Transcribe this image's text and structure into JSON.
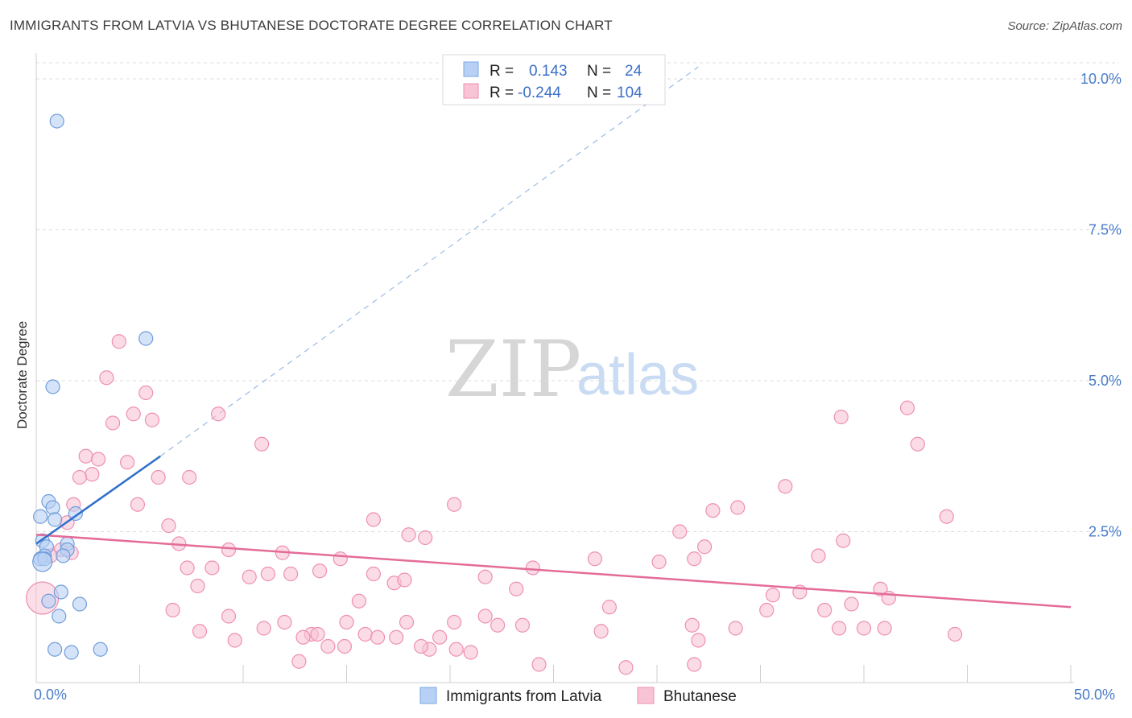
{
  "header": {
    "title": "IMMIGRANTS FROM LATVIA VS BHUTANESE DOCTORATE DEGREE CORRELATION CHART",
    "source": "Source: ZipAtlas.com"
  },
  "watermark": {
    "zip": "ZIP",
    "atlas": "atlas"
  },
  "legend": {
    "r_label": "R =",
    "n_label": "N =",
    "rows": [
      {
        "r": "0.143",
        "n": "24",
        "color": "#7aa8e6"
      },
      {
        "r": "-0.244",
        "n": "104",
        "color": "#f08bb0"
      }
    ]
  },
  "colors": {
    "latvia_fill": "#b7d0f3",
    "latvia_stroke": "#6f9ddc",
    "latvia_line": "#2f6fca",
    "bhutanese_fill": "#f8c3d4",
    "bhutanese_stroke": "#ee8fb1",
    "bhutanese_line": "#e46c98",
    "axis_text": "#4a7cc9",
    "grid": "#dcdcdc"
  },
  "chart_data": {
    "type": "scatter",
    "title": "IMMIGRANTS FROM LATVIA VS BHUTANESE DOCTORATE DEGREE CORRELATION CHART",
    "xlabel": "",
    "ylabel": "Doctorate Degree",
    "xlim": [
      0,
      50
    ],
    "ylim": [
      0,
      10
    ],
    "x_tick_labels": [
      "0.0%",
      "50.0%"
    ],
    "y_ticks": [
      2.5,
      5.0,
      7.5,
      10.0
    ],
    "y_tick_labels": [
      "2.5%",
      "5.0%",
      "7.5%",
      "10.0%"
    ],
    "grid": true,
    "legend_position": "top-center",
    "series": [
      {
        "name": "Immigrants from Latvia",
        "r": 0.143,
        "n": 24,
        "trend": {
          "x": [
            0,
            6
          ],
          "y": [
            2.3,
            3.75
          ],
          "dashed_extension_to": [
            32,
            10.2
          ]
        },
        "points": [
          [
            1.0,
            9.3
          ],
          [
            5.3,
            5.7
          ],
          [
            0.8,
            4.9
          ],
          [
            0.6,
            3.0
          ],
          [
            0.8,
            2.9
          ],
          [
            0.2,
            2.75
          ],
          [
            0.9,
            2.7
          ],
          [
            1.9,
            2.8
          ],
          [
            0.3,
            2.35
          ],
          [
            1.5,
            2.3
          ],
          [
            0.5,
            2.25
          ],
          [
            1.5,
            2.2
          ],
          [
            0.4,
            2.1
          ],
          [
            1.3,
            2.1
          ],
          [
            0.2,
            2.05
          ],
          [
            0.4,
            2.05
          ],
          [
            1.2,
            1.5
          ],
          [
            0.6,
            1.35
          ],
          [
            2.1,
            1.3
          ],
          [
            1.1,
            1.1
          ],
          [
            0.9,
            0.55
          ],
          [
            1.7,
            0.5
          ],
          [
            3.1,
            0.55
          ],
          [
            0.3,
            2.0
          ]
        ]
      },
      {
        "name": "Bhutanese",
        "r": -0.244,
        "n": 104,
        "trend": {
          "x": [
            0,
            50
          ],
          "y": [
            2.45,
            1.25
          ]
        },
        "points": [
          [
            4.0,
            5.65
          ],
          [
            3.4,
            5.05
          ],
          [
            5.3,
            4.8
          ],
          [
            4.7,
            4.45
          ],
          [
            5.6,
            4.35
          ],
          [
            3.7,
            4.3
          ],
          [
            8.8,
            4.45
          ],
          [
            10.9,
            3.95
          ],
          [
            2.4,
            3.75
          ],
          [
            3.0,
            3.7
          ],
          [
            4.4,
            3.65
          ],
          [
            2.7,
            3.45
          ],
          [
            2.1,
            3.4
          ],
          [
            5.9,
            3.4
          ],
          [
            7.4,
            3.4
          ],
          [
            1.8,
            2.95
          ],
          [
            4.9,
            2.95
          ],
          [
            1.5,
            2.65
          ],
          [
            6.4,
            2.6
          ],
          [
            16.3,
            2.7
          ],
          [
            20.2,
            2.95
          ],
          [
            33.9,
            2.9
          ],
          [
            32.7,
            2.85
          ],
          [
            31.1,
            2.5
          ],
          [
            36.2,
            3.25
          ],
          [
            39.0,
            2.35
          ],
          [
            44.0,
            2.75
          ],
          [
            38.9,
            4.4
          ],
          [
            42.6,
            3.95
          ],
          [
            42.1,
            4.55
          ],
          [
            18.8,
            2.4
          ],
          [
            18.0,
            2.45
          ],
          [
            6.9,
            2.3
          ],
          [
            9.3,
            2.2
          ],
          [
            11.9,
            2.15
          ],
          [
            14.7,
            2.05
          ],
          [
            30.1,
            2.0
          ],
          [
            31.8,
            2.05
          ],
          [
            32.3,
            2.25
          ],
          [
            27.0,
            2.05
          ],
          [
            24.0,
            1.9
          ],
          [
            37.8,
            2.1
          ],
          [
            1.2,
            2.2
          ],
          [
            0.7,
            2.1
          ],
          [
            1.7,
            2.15
          ],
          [
            7.3,
            1.9
          ],
          [
            8.5,
            1.9
          ],
          [
            10.3,
            1.75
          ],
          [
            11.2,
            1.8
          ],
          [
            12.3,
            1.8
          ],
          [
            13.7,
            1.85
          ],
          [
            17.3,
            1.65
          ],
          [
            16.3,
            1.8
          ],
          [
            17.8,
            1.7
          ],
          [
            21.7,
            1.75
          ],
          [
            23.2,
            1.55
          ],
          [
            36.9,
            1.5
          ],
          [
            35.6,
            1.45
          ],
          [
            35.3,
            1.2
          ],
          [
            39.4,
            1.3
          ],
          [
            38.1,
            1.2
          ],
          [
            40.8,
            1.55
          ],
          [
            41.2,
            1.4
          ],
          [
            27.7,
            1.25
          ],
          [
            15.6,
            1.35
          ],
          [
            7.8,
            1.6
          ],
          [
            6.6,
            1.2
          ],
          [
            9.3,
            1.1
          ],
          [
            11.0,
            0.9
          ],
          [
            12.0,
            1.0
          ],
          [
            13.3,
            0.8
          ],
          [
            15.0,
            1.0
          ],
          [
            17.9,
            1.0
          ],
          [
            20.2,
            1.0
          ],
          [
            21.7,
            1.1
          ],
          [
            22.3,
            0.95
          ],
          [
            23.5,
            0.95
          ],
          [
            27.3,
            0.85
          ],
          [
            31.7,
            0.95
          ],
          [
            33.8,
            0.9
          ],
          [
            38.8,
            0.9
          ],
          [
            40.0,
            0.9
          ],
          [
            41.0,
            0.9
          ],
          [
            7.9,
            0.85
          ],
          [
            9.6,
            0.7
          ],
          [
            12.9,
            0.75
          ],
          [
            13.6,
            0.8
          ],
          [
            14.9,
            0.6
          ],
          [
            15.9,
            0.8
          ],
          [
            16.5,
            0.75
          ],
          [
            17.4,
            0.75
          ],
          [
            19.5,
            0.75
          ],
          [
            19.0,
            0.55
          ],
          [
            18.6,
            0.6
          ],
          [
            20.3,
            0.55
          ],
          [
            21.0,
            0.5
          ],
          [
            14.1,
            0.6
          ],
          [
            12.7,
            0.35
          ],
          [
            24.3,
            0.3
          ],
          [
            28.5,
            0.25
          ],
          [
            31.8,
            0.3
          ],
          [
            32.0,
            0.7
          ],
          [
            44.4,
            0.8
          ],
          [
            0.3,
            1.4
          ]
        ]
      }
    ]
  },
  "bottom_legend": {
    "items": [
      {
        "label": "Immigrants from Latvia"
      },
      {
        "label": "Bhutanese"
      }
    ]
  }
}
